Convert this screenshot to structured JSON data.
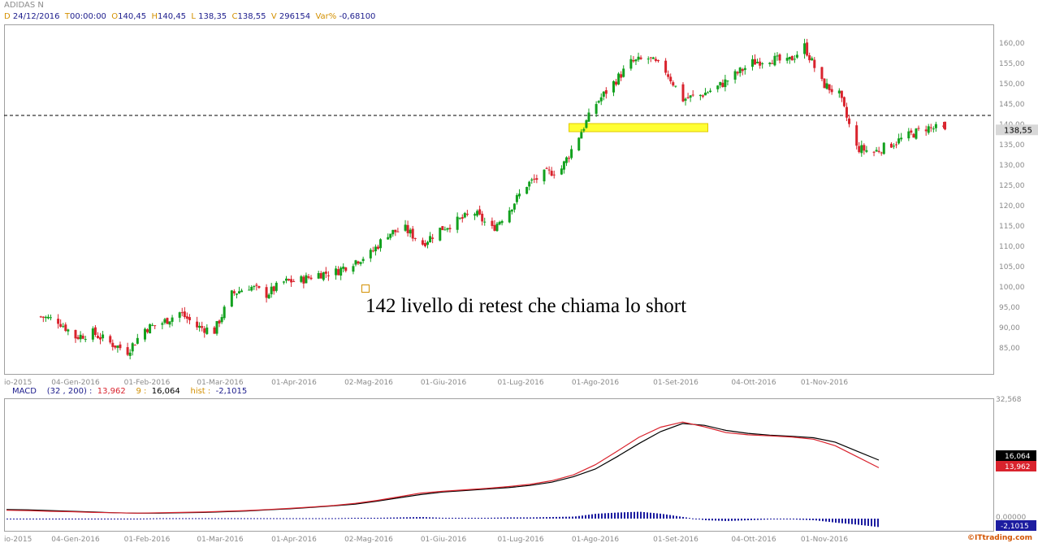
{
  "symbol": "ADIDAS N",
  "ohlc_header": {
    "d_key": "D",
    "date": "24/12/2016",
    "t_key": "T",
    "time": "00:00:00",
    "o_key": "O",
    "open": "140,45",
    "h_key": "H",
    "high": "140,45",
    "l_key": "L",
    "low": "138,35",
    "c_key": "C",
    "close": "138,55",
    "v_key": "V",
    "volume": "296154",
    "var_key": "Var%",
    "var": "-0,68100"
  },
  "macd_header": {
    "name": "MACD",
    "params": "(32 , 200) :",
    "value": "13,962",
    "signal_key": "9 :",
    "signal": "16,064",
    "hist_key": "hist :",
    "hist": "-2,1015"
  },
  "colors": {
    "up": "#12a11e",
    "down": "#d9232d",
    "macd": "#d9232d",
    "signal": "#000000",
    "hist": "#1c1ca0",
    "zone": "#ffff33",
    "brand": "#d35400"
  },
  "annotation_text": "142 livello di retest che chiama lo short",
  "brand": "ITtrading.com",
  "brand_icon": "copyright-icon",
  "chart_data": [
    {
      "type": "candlestick",
      "title": "ADIDAS N",
      "x_ticks": [
        "io-2015",
        "04-Gen-2016",
        "01-Feb-2016",
        "01-Mar-2016",
        "01-Apr-2016",
        "02-Mag-2016",
        "01-Giu-2016",
        "01-Lug-2016",
        "01-Ago-2016",
        "01-Set-2016",
        "04-Ott-2016",
        "01-Nov-2016"
      ],
      "y_ticks": [
        "85,00",
        "90,00",
        "95,00",
        "100,00",
        "105,00",
        "110,00",
        "115,00",
        "120,00",
        "125,00",
        "130,00",
        "135,00",
        "140,00",
        "145,00",
        "150,00",
        "155,00",
        "160,00"
      ],
      "ylim": [
        80,
        162
      ],
      "last_price_label": "138,55",
      "horizontal_line": 142,
      "zone": {
        "from_date": "21-Lug-2016",
        "to_date": "15-Set-2016",
        "low": 138,
        "high": 140
      },
      "close_path": [
        [
          "21-Dic-2015",
          92.5
        ],
        [
          "28-Dic-2015",
          91.5
        ],
        [
          "04-Gen-2016",
          87.5
        ],
        [
          "11-Gen-2016",
          88.5
        ],
        [
          "18-Gen-2016",
          86
        ],
        [
          "25-Gen-2016",
          84
        ],
        [
          "01-Feb-2016",
          89.5
        ],
        [
          "08-Feb-2016",
          91
        ],
        [
          "15-Feb-2016",
          93.5
        ],
        [
          "22-Feb-2016",
          90
        ],
        [
          "29-Feb-2016",
          89
        ],
        [
          "07-Mar-2016",
          98
        ],
        [
          "14-Mar-2016",
          100
        ],
        [
          "21-Mar-2016",
          98
        ],
        [
          "28-Mar-2016",
          101
        ],
        [
          "04-Apr-2016",
          101.5
        ],
        [
          "11-Apr-2016",
          103
        ],
        [
          "18-Apr-2016",
          103.5
        ],
        [
          "25-Apr-2016",
          106
        ],
        [
          "02-Mag-2016",
          108
        ],
        [
          "09-Mag-2016",
          113
        ],
        [
          "16-Mag-2016",
          114
        ],
        [
          "23-Mag-2016",
          110.5
        ],
        [
          "30-Mag-2016",
          114
        ],
        [
          "06-Giu-2016",
          116
        ],
        [
          "13-Giu-2016",
          118
        ],
        [
          "20-Giu-2016",
          114
        ],
        [
          "27-Giu-2016",
          119
        ],
        [
          "04-Lug-2016",
          125
        ],
        [
          "11-Lug-2016",
          127.5
        ],
        [
          "18-Lug-2016",
          129
        ],
        [
          "25-Lug-2016",
          137
        ],
        [
          "01-Ago-2016",
          145
        ],
        [
          "08-Ago-2016",
          150
        ],
        [
          "15-Ago-2016",
          155
        ],
        [
          "22-Ago-2016",
          156
        ],
        [
          "29-Ago-2016",
          153
        ],
        [
          "05-Set-2016",
          146
        ],
        [
          "12-Set-2016",
          147
        ],
        [
          "19-Set-2016",
          149
        ],
        [
          "26-Set-2016",
          152
        ],
        [
          "03-Ott-2016",
          155
        ],
        [
          "10-Ott-2016",
          156
        ],
        [
          "17-Ott-2016",
          155
        ],
        [
          "24-Ott-2016",
          159
        ],
        [
          "31-Ott-2016",
          150
        ],
        [
          "07-Nov-2016",
          147
        ],
        [
          "14-Nov-2016",
          134
        ],
        [
          "21-Nov-2016",
          133
        ],
        [
          "28-Nov-2016",
          135
        ],
        [
          "05-Dic-2016",
          137
        ],
        [
          "12-Dic-2016",
          139
        ],
        [
          "19-Dic-2016",
          138.55
        ]
      ],
      "final_candle": {
        "date": "24/12/2016",
        "open": 140.45,
        "high": 140.45,
        "low": 138.35,
        "close": 138.55
      }
    },
    {
      "type": "line",
      "title": "MACD",
      "params": [
        32,
        200,
        9
      ],
      "y_ticks": [
        "32,568",
        "0,00000"
      ],
      "series": [
        {
          "name": "MACD",
          "values": [
            2.3,
            2.2,
            2.0,
            1.9,
            1.7,
            1.6,
            1.5,
            1.6,
            1.7,
            1.8,
            2.0,
            2.2,
            2.5,
            2.8,
            3.2,
            3.6,
            4.2,
            5.0,
            6.0,
            7.0,
            7.5,
            7.9,
            8.3,
            8.8,
            9.4,
            10.4,
            12.0,
            14.8,
            18.5,
            22.3,
            25.1,
            26.5,
            25.2,
            23.6,
            23.0,
            22.7,
            22.4,
            21.8,
            20.0,
            17.0,
            13.962
          ]
        },
        {
          "name": "Signal",
          "values": [
            2.5,
            2.4,
            2.2,
            2.0,
            1.8,
            1.6,
            1.5,
            1.5,
            1.6,
            1.7,
            1.9,
            2.1,
            2.4,
            2.7,
            3.1,
            3.5,
            4.0,
            4.8,
            5.7,
            6.6,
            7.3,
            7.7,
            8.1,
            8.5,
            9.1,
            10.0,
            11.5,
            13.6,
            17.0,
            20.6,
            23.9,
            26.1,
            25.6,
            24.2,
            23.4,
            22.9,
            22.6,
            22.2,
            21.0,
            18.5,
            16.064
          ]
        },
        {
          "name": "hist",
          "values": [
            -0.2,
            -0.2,
            -0.2,
            -0.1,
            -0.1,
            0.0,
            0.0,
            0.1,
            0.1,
            0.1,
            0.1,
            0.1,
            0.1,
            0.1,
            0.1,
            0.1,
            0.2,
            0.2,
            0.3,
            0.4,
            0.2,
            0.2,
            0.2,
            0.3,
            0.3,
            0.4,
            0.5,
            1.2,
            1.5,
            1.7,
            1.2,
            0.4,
            -0.4,
            -0.6,
            -0.4,
            -0.2,
            -0.2,
            -0.4,
            -1.0,
            -1.5,
            -2.1015
          ]
        }
      ],
      "last_labels": [
        "16,064",
        "13,962",
        "-2,1015"
      ]
    }
  ]
}
